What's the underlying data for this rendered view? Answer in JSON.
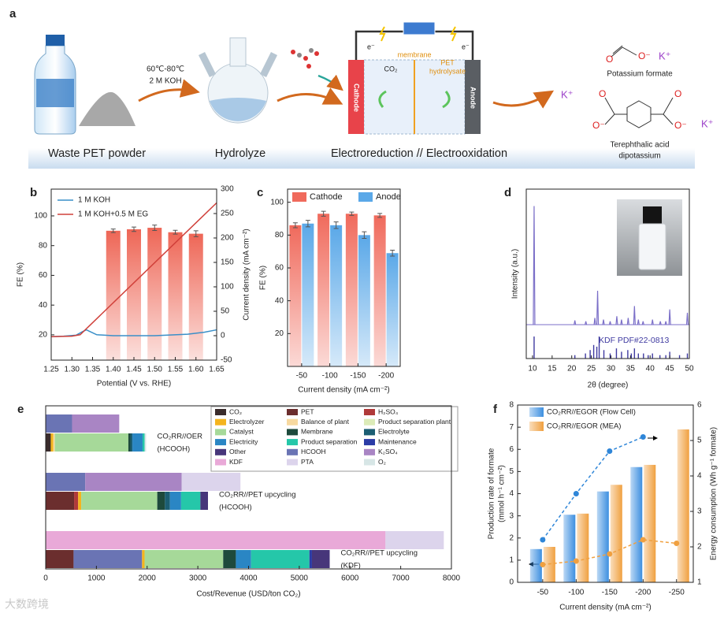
{
  "panel_a": {
    "label": "a",
    "step1": "60℃-80℃",
    "step2": "2 M KOH",
    "caption1": "Waste PET powder",
    "caption2": "Hydrolyze",
    "caption3": "Electroreduction // Electrooxidation",
    "membrane": "membrane",
    "co2": "CO₂",
    "hydrolysate": [
      "PET",
      "hydrolysate"
    ],
    "cathode": "Cathode",
    "anode": "Anode",
    "electron": "e⁻",
    "potassium": "K⁺",
    "oxygen": "O",
    "oxide": "O⁻",
    "product1": "Potassium formate",
    "product2": [
      "Terephthalic acid",
      "dipotassium"
    ]
  },
  "chart_data": [
    {
      "panel": "b",
      "type": "line",
      "xlabel": "Potential (V vs. RHE)",
      "ylabel": "FE (%)",
      "y2label": "Current density (mA cm⁻²)",
      "xlim": [
        1.25,
        1.65
      ],
      "xticks": [
        1.25,
        {
          "value": 1.3,
          "label": "1.30"
        },
        1.35,
        {
          "value": 1.4,
          "label": "1.40"
        },
        1.45,
        {
          "value": 1.5,
          "label": "1.50"
        },
        1.55,
        {
          "value": 1.6,
          "label": "1.60"
        },
        1.65
      ],
      "ylim": [
        3,
        118
      ],
      "yticks": [
        20,
        40,
        60,
        80,
        100
      ],
      "y2lim": [
        -50,
        300
      ],
      "y2ticks": [
        -50,
        0,
        50,
        100,
        150,
        200,
        250,
        300
      ],
      "bars": {
        "color": "#ee6656",
        "x": [
          1.4,
          1.45,
          1.5,
          1.55,
          1.6
        ],
        "values": [
          90,
          91,
          92,
          89,
          88
        ],
        "errors": [
          1.2,
          1.5,
          1.8,
          1.3,
          2
        ]
      },
      "series": [
        {
          "name": "1 M KOH",
          "color": "#3a8fc8",
          "axis": "y2",
          "x": [
            1.25,
            1.28,
            1.31,
            1.325,
            1.335,
            1.345,
            1.36,
            1.4,
            1.5,
            1.58,
            1.62,
            1.65
          ],
          "values": [
            -2,
            -1,
            1,
            8,
            12,
            8,
            2,
            0,
            0,
            3,
            7,
            12
          ]
        },
        {
          "name": "1 M KOH+0.5 M EG",
          "color": "#d0403a",
          "axis": "y2",
          "x": [
            1.25,
            1.3,
            1.32,
            1.65
          ],
          "values": [
            -2,
            -1,
            2,
            272
          ]
        }
      ],
      "legend": "upper left"
    },
    {
      "panel": "c",
      "type": "bar",
      "xlabel": "Current density (mA cm⁻²)",
      "ylabel": "FE (%)",
      "categories": [
        "-50",
        "-100",
        "-150",
        "-200"
      ],
      "ylim": [
        0,
        108
      ],
      "yticks": [
        20,
        40,
        60,
        80,
        100
      ],
      "series": [
        {
          "name": "Cathode",
          "color": "#f06a5c",
          "values": [
            86,
            93,
            93,
            92
          ],
          "errors": [
            1.5,
            1.5,
            1,
            1.2
          ]
        },
        {
          "name": "Anode",
          "color": "#5aa8e8",
          "values": [
            87,
            86,
            80,
            69
          ],
          "errors": [
            2,
            2,
            2,
            1.8
          ]
        }
      ],
      "legend": "top"
    },
    {
      "panel": "d",
      "type": "line",
      "xlabel": "2θ (degree)",
      "ylabel": "Intensity (a.u.)",
      "xlim": [
        8.4,
        50
      ],
      "xticks": [
        10,
        15,
        20,
        25,
        30,
        35,
        40,
        45,
        50
      ],
      "ylim": [
        0,
        100
      ],
      "baseline": 20,
      "color": "#7b6fc8",
      "peaks": {
        "x": [
          10.4,
          20.8,
          23.6,
          25.9,
          26.6,
          28.1,
          29.8,
          31.5,
          32.7,
          34.4,
          36,
          37,
          38.2,
          40.6,
          42.6,
          44,
          45,
          49.5
        ],
        "values": [
          90,
          22.5,
          22,
          24,
          40,
          23,
          22,
          25,
          23,
          24,
          31,
          23,
          22,
          23,
          22,
          22,
          29,
          27
        ]
      },
      "reference": {
        "name": "KDF PDF#22-0813",
        "color": "#3f3aa0",
        "x": [
          10.4,
          20.8,
          23.5,
          24.7,
          25.6,
          26.4,
          27,
          28.2,
          29.8,
          31.4,
          32.7,
          34.3,
          35.2,
          36,
          37,
          38.3,
          39.5,
          40.6,
          42.5,
          44,
          45,
          47.5,
          49.5
        ],
        "values": [
          13,
          2,
          3,
          5,
          8,
          7,
          13,
          5,
          3,
          6,
          4,
          5,
          3,
          6,
          3,
          3,
          2,
          3,
          2,
          2,
          4,
          2,
          3
        ]
      }
    },
    {
      "panel": "e",
      "type": "bar",
      "orientation": "horizontal",
      "xlabel": "Cost/Revenue (USD/ton CO₂)",
      "xlim": [
        0,
        8000
      ],
      "xticks": [
        0,
        1000,
        2000,
        3000,
        4000,
        5000,
        6000,
        7000,
        8000
      ],
      "legend_entries": [
        {
          "name": "CO₂",
          "color": "#3a2c2c"
        },
        {
          "name": "PET",
          "color": "#6b2e2e"
        },
        {
          "name": "H₂SO₄",
          "color": "#b03a3a"
        },
        {
          "name": "Electrolyzer",
          "color": "#f4b41e"
        },
        {
          "name": "Balance of plant",
          "color": "#f7d9a0"
        },
        {
          "name": "Product separation plant",
          "color": "#dcebb8"
        },
        {
          "name": "Catalyst",
          "color": "#a6d999"
        },
        {
          "name": "Membrane",
          "color": "#1e4a3c"
        },
        {
          "name": "Electrolyte",
          "color": "#1b5e73"
        },
        {
          "name": "Electricity",
          "color": "#2a86c4"
        },
        {
          "name": "Product separation",
          "color": "#25c7a9"
        },
        {
          "name": "Maintenance",
          "color": "#2b3ca6"
        },
        {
          "name": "Other",
          "color": "#47367a"
        },
        {
          "name": "HCOOH",
          "color": "#6a74b4"
        },
        {
          "name": "K₂SO₄",
          "color": "#a985c4"
        },
        {
          "name": "KDF",
          "color": "#e9a9d8"
        },
        {
          "name": "PTA",
          "color": "#dcd4ec"
        },
        {
          "name": "O₂",
          "color": "#d7e6e6"
        }
      ],
      "groups": [
        {
          "label": [
            "CO₂RR//OER",
            "(HCOOH)"
          ],
          "bars": [
            [
              {
                "name": "HCOOH",
                "value": 520
              },
              {
                "name": "K₂SO₄",
                "value": 930
              }
            ],
            [
              {
                "name": "CO₂",
                "value": 100
              },
              {
                "name": "Electrolyzer",
                "value": 50
              },
              {
                "name": "Balance of plant",
                "value": 30
              },
              {
                "name": "Catalyst",
                "value": 1450
              },
              {
                "name": "Membrane",
                "value": 40
              },
              {
                "name": "Electrolyte",
                "value": 40
              },
              {
                "name": "Electricity",
                "value": 200
              },
              {
                "name": "Product separation",
                "value": 40
              },
              {
                "name": "O₂",
                "value": 30
              }
            ]
          ]
        },
        {
          "label": [
            "CO₂RR//PET upcycling",
            "(HCOOH)"
          ],
          "bars": [
            [
              {
                "name": "HCOOH",
                "value": 780
              },
              {
                "name": "K₂SO₄",
                "value": 1900
              },
              {
                "name": "PTA",
                "value": 1160
              }
            ],
            [
              {
                "name": "PET",
                "value": 560
              },
              {
                "name": "H₂SO₄",
                "value": 80
              },
              {
                "name": "Electrolyzer",
                "value": 60
              },
              {
                "name": "Catalyst",
                "value": 1500
              },
              {
                "name": "Membrane",
                "value": 150
              },
              {
                "name": "Electrolyte",
                "value": 100
              },
              {
                "name": "Electricity",
                "value": 220
              },
              {
                "name": "Product separation",
                "value": 380
              },
              {
                "name": "Other",
                "value": 150
              }
            ]
          ]
        },
        {
          "label": [
            "CO₂RR//PET upcycling",
            "(KDF)"
          ],
          "bars": [
            [
              {
                "name": "KDF",
                "value": 6700
              },
              {
                "name": "PTA",
                "value": 1150
              }
            ],
            [
              {
                "name": "PET",
                "value": 550
              },
              {
                "name": "HCOOH",
                "value": 1350
              },
              {
                "name": "Electrolyzer",
                "value": 50
              },
              {
                "name": "Catalyst",
                "value": 1550
              },
              {
                "name": "Membrane",
                "value": 250
              },
              {
                "name": "Electricity",
                "value": 300
              },
              {
                "name": "Product separation",
                "value": 1150
              },
              {
                "name": "Maintenance",
                "value": 50
              },
              {
                "name": "Other",
                "value": 350
              }
            ]
          ]
        }
      ]
    },
    {
      "panel": "f",
      "type": "bar",
      "xlabel": "Current density (mA cm⁻²)",
      "ylabel": [
        "Production rate of formate",
        "(mmol h⁻¹ cm⁻²)"
      ],
      "y2label": "Energy consumption (Wh g⁻¹ formate)",
      "categories": [
        "-50",
        "-100",
        "-150",
        "-200",
        "-250"
      ],
      "ylim": [
        0,
        8
      ],
      "yticks": [
        0,
        1,
        2,
        3,
        4,
        5,
        6,
        7,
        8
      ],
      "y2lim": [
        1,
        6
      ],
      "y2ticks": [
        1,
        2,
        3,
        4,
        5,
        6
      ],
      "series": [
        {
          "name": "CO₂RR//EGOR (Flow Cell)",
          "color": "#3d8fe0",
          "values": [
            1.5,
            3.05,
            4.1,
            5.2,
            null
          ]
        },
        {
          "name": "CO₂RR//EGOR (MEA)",
          "color": "#f0a040",
          "values": [
            1.6,
            3.1,
            4.4,
            5.3,
            6.9
          ]
        }
      ],
      "lines": [
        {
          "color": "#2f86d8",
          "axis": "y2",
          "values": [
            2.2,
            3.5,
            4.7,
            5.1,
            null
          ]
        },
        {
          "color": "#f0a040",
          "axis": "y2",
          "values": [
            1.5,
            1.6,
            1.8,
            2.2,
            2.1
          ]
        }
      ],
      "legend": "upper left"
    }
  ],
  "watermark": "大数跨境"
}
